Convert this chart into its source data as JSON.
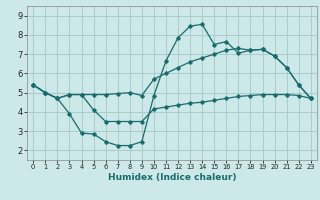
{
  "xlabel": "Humidex (Indice chaleur)",
  "background_color": "#cce8e8",
  "grid_color": "#aacccc",
  "line_color": "#1a6b6b",
  "xlim": [
    -0.5,
    23.5
  ],
  "ylim": [
    1.5,
    9.5
  ],
  "xticks": [
    0,
    1,
    2,
    3,
    4,
    5,
    6,
    7,
    8,
    9,
    10,
    11,
    12,
    13,
    14,
    15,
    16,
    17,
    18,
    19,
    20,
    21,
    22,
    23
  ],
  "yticks": [
    2,
    3,
    4,
    5,
    6,
    7,
    8,
    9
  ],
  "line1_x": [
    0,
    1,
    2,
    3,
    4,
    5,
    6,
    7,
    8,
    9,
    10,
    11,
    12,
    13,
    14,
    15,
    16,
    17,
    18,
    19,
    20,
    21,
    22,
    23
  ],
  "line1_y": [
    5.4,
    5.0,
    4.7,
    4.9,
    4.9,
    4.9,
    4.9,
    4.95,
    5.0,
    4.85,
    5.7,
    6.0,
    6.3,
    6.6,
    6.8,
    7.0,
    7.2,
    7.3,
    7.2,
    7.25,
    6.9,
    6.3,
    5.4,
    4.7
  ],
  "line2_x": [
    0,
    1,
    2,
    3,
    4,
    5,
    6,
    7,
    8,
    9,
    10,
    11,
    12,
    13,
    14,
    15,
    16,
    17,
    18,
    19,
    20,
    21,
    22,
    23
  ],
  "line2_y": [
    5.4,
    5.0,
    4.7,
    3.9,
    2.9,
    2.85,
    2.45,
    2.25,
    2.25,
    2.45,
    4.85,
    6.65,
    7.85,
    8.45,
    8.55,
    7.5,
    7.65,
    7.05,
    7.2,
    7.25,
    6.9,
    6.3,
    5.4,
    4.7
  ],
  "line3_x": [
    0,
    1,
    2,
    3,
    4,
    5,
    6,
    7,
    8,
    9,
    10,
    11,
    12,
    13,
    14,
    15,
    16,
    17,
    18,
    19,
    20,
    21,
    22,
    23
  ],
  "line3_y": [
    5.4,
    5.0,
    4.7,
    4.9,
    4.9,
    4.1,
    3.5,
    3.5,
    3.5,
    3.5,
    4.15,
    4.25,
    4.35,
    4.45,
    4.5,
    4.6,
    4.7,
    4.8,
    4.85,
    4.9,
    4.9,
    4.9,
    4.85,
    4.7
  ]
}
